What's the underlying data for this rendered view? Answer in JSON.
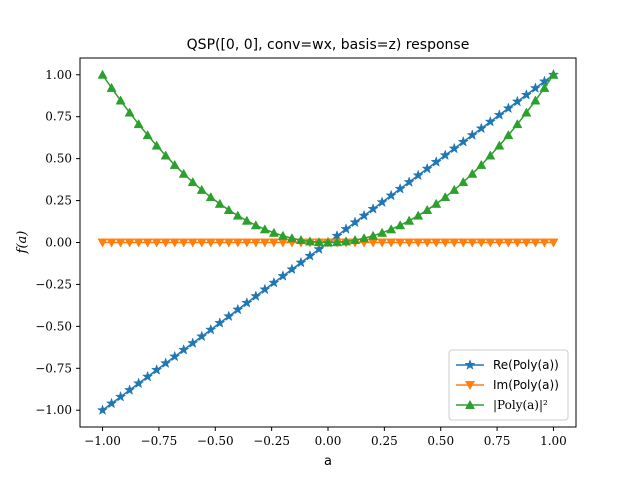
{
  "chart_data": {
    "type": "line",
    "title": "QSP([0, 0], conv=wx, basis=z) response",
    "xlabel": "a",
    "ylabel": "f(a)",
    "xlim": [
      -1.1,
      1.1
    ],
    "ylim": [
      -1.1,
      1.1
    ],
    "x_ticks": [
      -1.0,
      -0.75,
      -0.5,
      -0.25,
      0.0,
      0.25,
      0.5,
      0.75,
      1.0
    ],
    "y_ticks": [
      -1.0,
      -0.75,
      -0.5,
      -0.25,
      0.0,
      0.25,
      0.5,
      0.75,
      1.0
    ],
    "x_tick_labels": [
      "−1.00",
      "−0.75",
      "−0.50",
      "−0.25",
      "0.00",
      "0.25",
      "0.50",
      "0.75",
      "1.00"
    ],
    "y_tick_labels": [
      "−1.00",
      "−0.75",
      "−0.50",
      "−0.25",
      "0.00",
      "0.25",
      "0.50",
      "0.75",
      "1.00"
    ],
    "grid": false,
    "legend_position": "lower-right",
    "x": [
      -1.0,
      -0.96,
      -0.92,
      -0.88,
      -0.84,
      -0.8,
      -0.76,
      -0.72,
      -0.68,
      -0.64,
      -0.6,
      -0.56,
      -0.52,
      -0.48,
      -0.44,
      -0.4,
      -0.36,
      -0.32,
      -0.28,
      -0.24,
      -0.2,
      -0.16,
      -0.12,
      -0.08,
      -0.04,
      0.0,
      0.04,
      0.08,
      0.12,
      0.16,
      0.2,
      0.24,
      0.28,
      0.32,
      0.36,
      0.4,
      0.44,
      0.48,
      0.52,
      0.56,
      0.6,
      0.64,
      0.68,
      0.72,
      0.76,
      0.8,
      0.84,
      0.88,
      0.92,
      0.96,
      1.0
    ],
    "series": [
      {
        "name": "Re(Poly(a))",
        "color": "#1f77b4",
        "marker": "star",
        "values": [
          -1.0,
          -0.96,
          -0.92,
          -0.88,
          -0.84,
          -0.8,
          -0.76,
          -0.72,
          -0.68,
          -0.64,
          -0.6,
          -0.56,
          -0.52,
          -0.48,
          -0.44,
          -0.4,
          -0.36,
          -0.32,
          -0.28,
          -0.24,
          -0.2,
          -0.16,
          -0.12,
          -0.08,
          -0.04,
          0.0,
          0.04,
          0.08,
          0.12,
          0.16,
          0.2,
          0.24,
          0.28,
          0.32,
          0.36,
          0.4,
          0.44,
          0.48,
          0.52,
          0.56,
          0.6,
          0.64,
          0.68,
          0.72,
          0.76,
          0.8,
          0.84,
          0.88,
          0.92,
          0.96,
          1.0
        ]
      },
      {
        "name": "Im(Poly(a))",
        "color": "#ff7f0e",
        "marker": "triangle-down",
        "values": [
          0,
          0,
          0,
          0,
          0,
          0,
          0,
          0,
          0,
          0,
          0,
          0,
          0,
          0,
          0,
          0,
          0,
          0,
          0,
          0,
          0,
          0,
          0,
          0,
          0,
          0,
          0,
          0,
          0,
          0,
          0,
          0,
          0,
          0,
          0,
          0,
          0,
          0,
          0,
          0,
          0,
          0,
          0,
          0,
          0,
          0,
          0,
          0,
          0,
          0,
          0
        ]
      },
      {
        "name": "|Poly(a)|²",
        "color": "#2ca02c",
        "marker": "triangle-up",
        "values": [
          1.0,
          0.9216,
          0.8464,
          0.7744,
          0.7056,
          0.64,
          0.5776,
          0.5184,
          0.4624,
          0.4096,
          0.36,
          0.3136,
          0.2704,
          0.2304,
          0.1936,
          0.16,
          0.1296,
          0.1024,
          0.0784,
          0.0576,
          0.04,
          0.0256,
          0.0144,
          0.0064,
          0.0016,
          0.0,
          0.0016,
          0.0064,
          0.0144,
          0.0256,
          0.04,
          0.0576,
          0.0784,
          0.1024,
          0.1296,
          0.16,
          0.1936,
          0.2304,
          0.2704,
          0.3136,
          0.36,
          0.4096,
          0.4624,
          0.5184,
          0.5776,
          0.64,
          0.7056,
          0.7744,
          0.8464,
          0.9216,
          1.0
        ]
      }
    ]
  }
}
